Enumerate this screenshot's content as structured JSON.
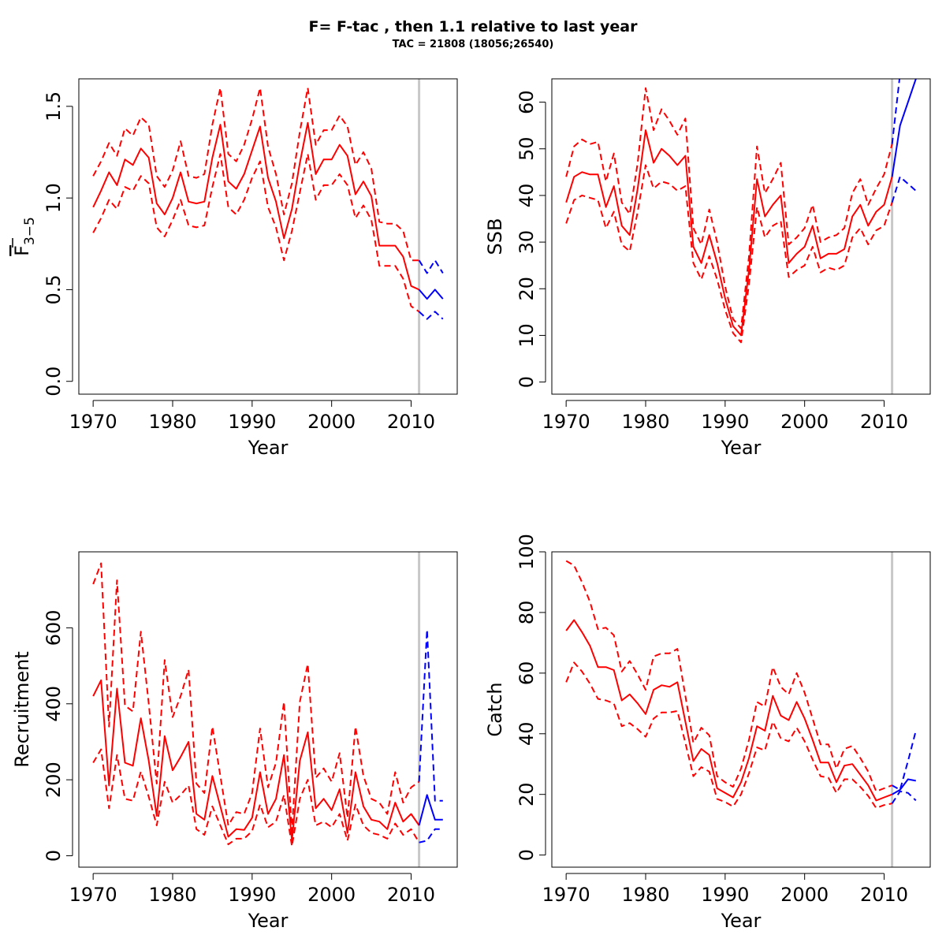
{
  "title": "F= F-tac , then 1.1  relative to last year",
  "subtitle": "TAC = 21808 (18056;26540)",
  "colors": {
    "historic": "#ff0000",
    "forecast": "#0000ff",
    "divider": "#c8c8c8"
  },
  "chart_data": [
    {
      "type": "line",
      "xlabel": "Year",
      "ylabel": "F3-5 (mean)",
      "ylabel_main": "F",
      "ylabel_sub": "3−5",
      "xlim": [
        1968.2,
        2015.8
      ],
      "ylim": [
        -0.07,
        1.65
      ],
      "xticks": [
        1970,
        1980,
        1990,
        2000,
        2010
      ],
      "yticks": [
        0.0,
        0.5,
        1.0,
        1.5
      ],
      "ytick_labels": [
        "0.0",
        "0.5",
        "1.0",
        "1.5"
      ],
      "vline": 2011,
      "hist_years": [
        1970,
        1971,
        1972,
        1973,
        1974,
        1975,
        1976,
        1977,
        1978,
        1979,
        1980,
        1981,
        1982,
        1983,
        1984,
        1985,
        1986,
        1987,
        1988,
        1989,
        1990,
        1991,
        1992,
        1993,
        1994,
        1995,
        1996,
        1997,
        1998,
        1999,
        2000,
        2001,
        2002,
        2003,
        2004,
        2005,
        2006,
        2007,
        2008,
        2009,
        2010,
        2011
      ],
      "hist_mid": [
        0.95,
        1.04,
        1.14,
        1.07,
        1.21,
        1.18,
        1.27,
        1.22,
        0.97,
        0.91,
        1.0,
        1.14,
        0.98,
        0.97,
        0.98,
        1.22,
        1.4,
        1.09,
        1.05,
        1.13,
        1.26,
        1.39,
        1.11,
        0.98,
        0.78,
        0.94,
        1.19,
        1.41,
        1.13,
        1.21,
        1.21,
        1.29,
        1.23,
        1.02,
        1.09,
        1.01,
        0.74,
        0.74,
        0.74,
        0.68,
        0.52,
        0.5
      ],
      "hist_low": [
        0.81,
        0.89,
        0.99,
        0.94,
        1.06,
        1.04,
        1.12,
        1.08,
        0.84,
        0.79,
        0.88,
        0.99,
        0.85,
        0.84,
        0.85,
        1.06,
        1.24,
        0.95,
        0.91,
        0.99,
        1.11,
        1.2,
        0.95,
        0.84,
        0.66,
        0.82,
        1.03,
        1.24,
        0.99,
        1.07,
        1.07,
        1.13,
        1.07,
        0.89,
        0.96,
        0.88,
        0.63,
        0.63,
        0.63,
        0.56,
        0.41,
        0.38
      ],
      "hist_high": [
        1.12,
        1.2,
        1.3,
        1.23,
        1.38,
        1.34,
        1.44,
        1.4,
        1.12,
        1.06,
        1.15,
        1.31,
        1.12,
        1.11,
        1.13,
        1.4,
        1.6,
        1.24,
        1.2,
        1.29,
        1.43,
        1.6,
        1.28,
        1.13,
        0.91,
        1.08,
        1.36,
        1.6,
        1.29,
        1.37,
        1.37,
        1.45,
        1.39,
        1.18,
        1.25,
        1.16,
        0.87,
        0.86,
        0.86,
        0.82,
        0.66,
        0.66
      ],
      "fc_years": [
        2011,
        2012,
        2013,
        2014
      ],
      "fc_mid": [
        0.5,
        0.45,
        0.5,
        0.45
      ],
      "fc_low": [
        0.38,
        0.34,
        0.38,
        0.34
      ],
      "fc_high": [
        0.66,
        0.59,
        0.66,
        0.59
      ]
    },
    {
      "type": "line",
      "xlabel": "Year",
      "ylabel": "SSB",
      "xlim": [
        1968.2,
        2015.8
      ],
      "ylim": [
        -2.6,
        65.0
      ],
      "xticks": [
        1970,
        1980,
        1990,
        2000,
        2010
      ],
      "yticks": [
        0,
        10,
        20,
        30,
        40,
        50,
        60
      ],
      "ytick_labels": [
        "0",
        "10",
        "20",
        "30",
        "40",
        "50",
        "60"
      ],
      "vline": 2011,
      "hist_years": [
        1970,
        1971,
        1972,
        1973,
        1974,
        1975,
        1976,
        1977,
        1978,
        1979,
        1980,
        1981,
        1982,
        1983,
        1984,
        1985,
        1986,
        1987,
        1988,
        1989,
        1990,
        1991,
        1992,
        1993,
        1994,
        1995,
        1996,
        1997,
        1998,
        1999,
        2000,
        2001,
        2002,
        2003,
        2004,
        2005,
        2006,
        2007,
        2008,
        2009,
        2010,
        2011
      ],
      "hist_mid": [
        38.5,
        44.0,
        45.0,
        44.5,
        44.5,
        37.5,
        42.0,
        33.5,
        31.5,
        41.5,
        54.0,
        47.0,
        50.0,
        48.5,
        46.5,
        48.5,
        29.0,
        25.5,
        31.5,
        25.5,
        18.0,
        12.0,
        10.0,
        24.0,
        43.5,
        35.5,
        38.0,
        40.0,
        25.5,
        27.5,
        29.0,
        33.5,
        26.5,
        27.5,
        27.5,
        28.5,
        35.5,
        38.0,
        33.5,
        36.5,
        38.0,
        44.0
      ],
      "hist_low": [
        34.0,
        39.0,
        40.0,
        39.5,
        39.0,
        33.0,
        36.5,
        29.5,
        28.0,
        36.5,
        46.5,
        41.5,
        43.0,
        42.5,
        41.0,
        42.0,
        25.5,
        22.0,
        27.0,
        22.0,
        15.5,
        10.5,
        8.5,
        21.0,
        37.5,
        31.0,
        33.5,
        34.5,
        22.5,
        24.0,
        25.0,
        29.0,
        23.5,
        24.5,
        24.0,
        25.0,
        31.0,
        33.0,
        29.5,
        32.5,
        33.5,
        38.5
      ],
      "hist_high": [
        44.0,
        50.5,
        52.0,
        51.0,
        51.5,
        43.0,
        49.0,
        38.5,
        36.0,
        47.0,
        63.0,
        54.0,
        58.5,
        56.0,
        53.0,
        56.5,
        33.0,
        29.5,
        37.0,
        30.0,
        20.5,
        13.5,
        11.5,
        27.0,
        50.5,
        40.5,
        43.5,
        47.0,
        29.5,
        31.0,
        33.0,
        38.0,
        30.0,
        31.0,
        31.5,
        33.0,
        40.5,
        43.5,
        38.0,
        41.5,
        44.5,
        51.0
      ],
      "fc_years": [
        2011,
        2012,
        2013,
        2014
      ],
      "fc_mid": [
        44.0,
        55.0,
        60.0,
        65.0
      ],
      "fc_low": [
        38.5,
        44.0,
        42.5,
        41.0
      ],
      "fc_high": [
        51.0,
        66.0,
        72.0,
        78.0
      ]
    },
    {
      "type": "line",
      "xlabel": "Year",
      "ylabel": "Recruitment",
      "xlim": [
        1968.2,
        2015.8
      ],
      "ylim": [
        -30,
        800
      ],
      "xticks": [
        1970,
        1980,
        1990,
        2000,
        2010
      ],
      "yticks": [
        0,
        200,
        400,
        600
      ],
      "ytick_labels": [
        "0",
        "200",
        "400",
        "600"
      ],
      "vline": 2011,
      "hist_years": [
        1970,
        1971,
        1972,
        1973,
        1974,
        1975,
        1976,
        1977,
        1978,
        1979,
        1980,
        1981,
        1982,
        1983,
        1984,
        1985,
        1986,
        1987,
        1988,
        1989,
        1990,
        1991,
        1992,
        1993,
        1994,
        1995,
        1996,
        1997,
        1998,
        1999,
        2000,
        2001,
        2002,
        2003,
        2004,
        2005,
        2006,
        2007,
        2008,
        2009,
        2010,
        2011
      ],
      "hist_mid": [
        420,
        462,
        185,
        440,
        245,
        237,
        362,
        250,
        105,
        315,
        225,
        260,
        300,
        110,
        95,
        210,
        130,
        50,
        70,
        68,
        100,
        220,
        110,
        150,
        265,
        40,
        250,
        325,
        125,
        150,
        120,
        175,
        60,
        220,
        130,
        95,
        90,
        70,
        140,
        90,
        110,
        80
      ],
      "hist_low": [
        245,
        280,
        125,
        265,
        150,
        145,
        222,
        155,
        80,
        195,
        140,
        160,
        185,
        70,
        55,
        130,
        80,
        30,
        45,
        45,
        65,
        135,
        75,
        90,
        160,
        25,
        150,
        200,
        80,
        90,
        75,
        110,
        40,
        135,
        80,
        60,
        55,
        45,
        85,
        55,
        70,
        35
      ],
      "hist_high": [
        715,
        770,
        340,
        725,
        395,
        380,
        590,
        400,
        190,
        515,
        365,
        420,
        490,
        190,
        165,
        340,
        210,
        80,
        115,
        110,
        165,
        335,
        180,
        245,
        405,
        65,
        405,
        505,
        205,
        230,
        195,
        270,
        100,
        340,
        210,
        150,
        140,
        110,
        220,
        140,
        180,
        195
      ],
      "fc_years": [
        2011,
        2012,
        2013,
        2014
      ],
      "fc_mid": [
        80,
        160,
        95,
        95
      ],
      "fc_low": [
        35,
        40,
        70,
        70
      ],
      "fc_high": [
        195,
        595,
        145,
        145
      ]
    },
    {
      "type": "line",
      "xlabel": "Year",
      "ylabel": "Catch",
      "xlim": [
        1968.2,
        2015.8
      ],
      "ylim": [
        -4,
        100
      ],
      "xticks": [
        1970,
        1980,
        1990,
        2000,
        2010
      ],
      "yticks": [
        0,
        20,
        40,
        60,
        80,
        100
      ],
      "ytick_labels": [
        "0",
        "20",
        "40",
        "60",
        "80",
        "100"
      ],
      "vline": 2011,
      "hist_years": [
        1970,
        1971,
        1972,
        1973,
        1974,
        1975,
        1976,
        1977,
        1978,
        1979,
        1980,
        1981,
        1982,
        1983,
        1984,
        1985,
        1986,
        1987,
        1988,
        1989,
        1990,
        1991,
        1992,
        1993,
        1994,
        1995,
        1996,
        1997,
        1998,
        1999,
        2000,
        2001,
        2002,
        2003,
        2004,
        2005,
        2006,
        2007,
        2008,
        2009,
        2010,
        2011
      ],
      "hist_mid": [
        74.0,
        77.5,
        73.5,
        69.0,
        62.0,
        62.0,
        61.0,
        51.0,
        53.0,
        50.0,
        46.5,
        54.5,
        56.0,
        55.5,
        57.0,
        44.0,
        31.0,
        35.0,
        33.0,
        22.0,
        20.5,
        19.0,
        24.0,
        32.0,
        42.5,
        41.0,
        52.5,
        46.0,
        44.5,
        50.5,
        45.0,
        38.0,
        30.5,
        30.5,
        24.0,
        29.5,
        30.0,
        26.5,
        23.0,
        18.0,
        19.0,
        20.0
      ],
      "hist_low": [
        57.0,
        63.5,
        60.5,
        56.5,
        51.5,
        51.0,
        50.0,
        42.5,
        43.5,
        41.5,
        39.0,
        45.0,
        47.0,
        47.0,
        47.5,
        37.0,
        26.0,
        29.0,
        27.5,
        18.5,
        17.5,
        16.0,
        20.0,
        27.0,
        35.5,
        34.5,
        44.0,
        38.5,
        37.5,
        42.0,
        37.5,
        31.5,
        26.0,
        25.5,
        20.5,
        25.0,
        25.0,
        22.5,
        19.5,
        15.5,
        16.5,
        17.0
      ],
      "hist_high": [
        97.0,
        95.5,
        90.0,
        83.5,
        74.5,
        75.0,
        72.5,
        60.5,
        64.0,
        59.5,
        54.5,
        65.5,
        66.5,
        66.5,
        68.0,
        52.5,
        37.0,
        42.0,
        39.5,
        26.0,
        24.0,
        22.5,
        28.5,
        38.0,
        50.5,
        49.0,
        62.0,
        55.5,
        53.0,
        60.0,
        53.5,
        45.0,
        36.5,
        36.5,
        28.5,
        35.0,
        36.0,
        32.0,
        27.5,
        21.0,
        22.0,
        23.0
      ],
      "fc_years": [
        2011,
        2012,
        2013,
        2014
      ],
      "fc_mid": [
        20.0,
        21.5,
        25.0,
        24.5
      ],
      "fc_low": [
        17.0,
        21.0,
        20.5,
        18.0
      ],
      "fc_high": [
        23.0,
        21.5,
        31.0,
        41.0
      ]
    }
  ]
}
